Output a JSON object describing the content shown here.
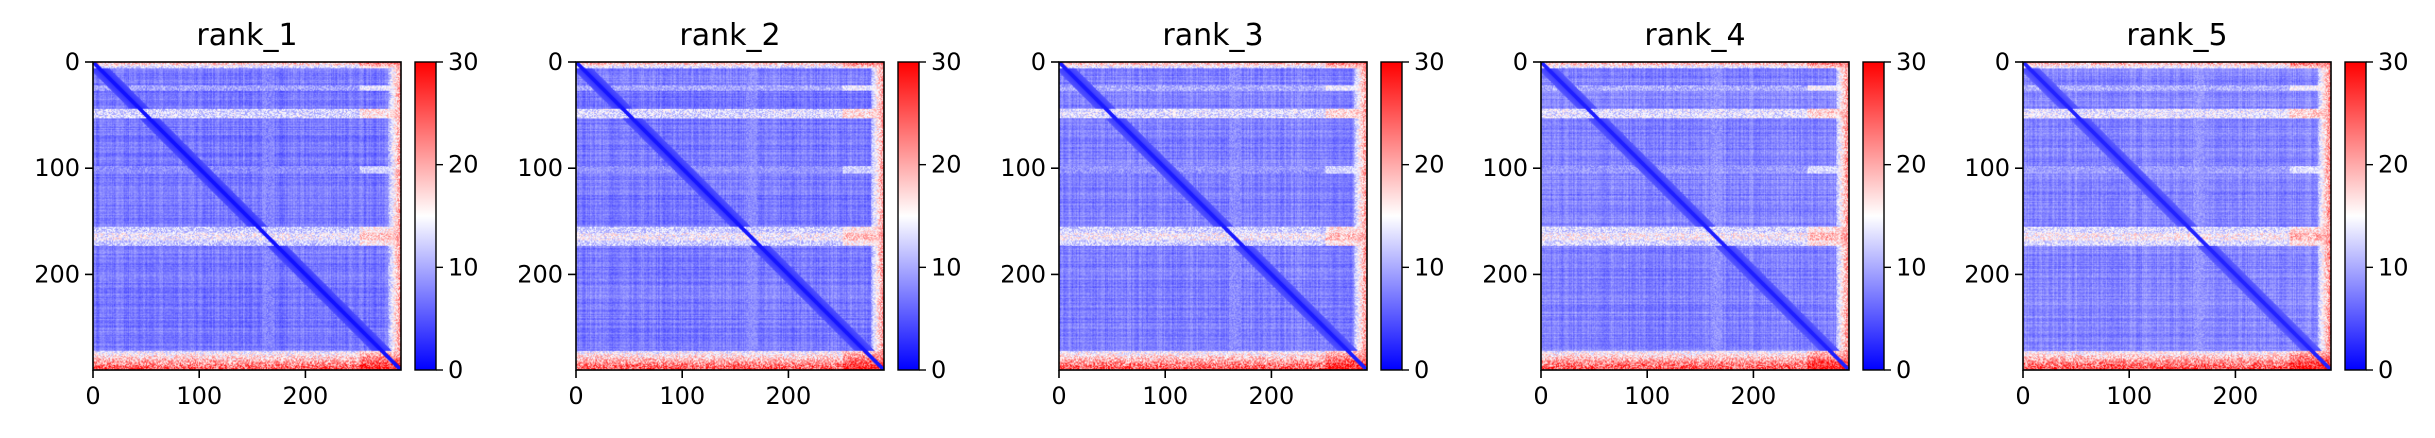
{
  "chart_data": {
    "type": "heatmap",
    "colormap": "bwr",
    "colormap_colors": {
      "low": "#0000ff",
      "mid": "#ffffff",
      "high": "#ff0000"
    },
    "color_range": [
      0,
      30
    ],
    "matrix_size": 290,
    "panels": [
      {
        "title": "rank_1"
      },
      {
        "title": "rank_2"
      },
      {
        "title": "rank_3"
      },
      {
        "title": "rank_4"
      },
      {
        "title": "rank_5"
      }
    ],
    "x_ticks": [
      0,
      100,
      200
    ],
    "y_ticks": [
      0,
      100,
      200
    ],
    "colorbar_ticks": [
      0,
      10,
      20,
      30
    ],
    "grid": false,
    "legend": "none"
  }
}
